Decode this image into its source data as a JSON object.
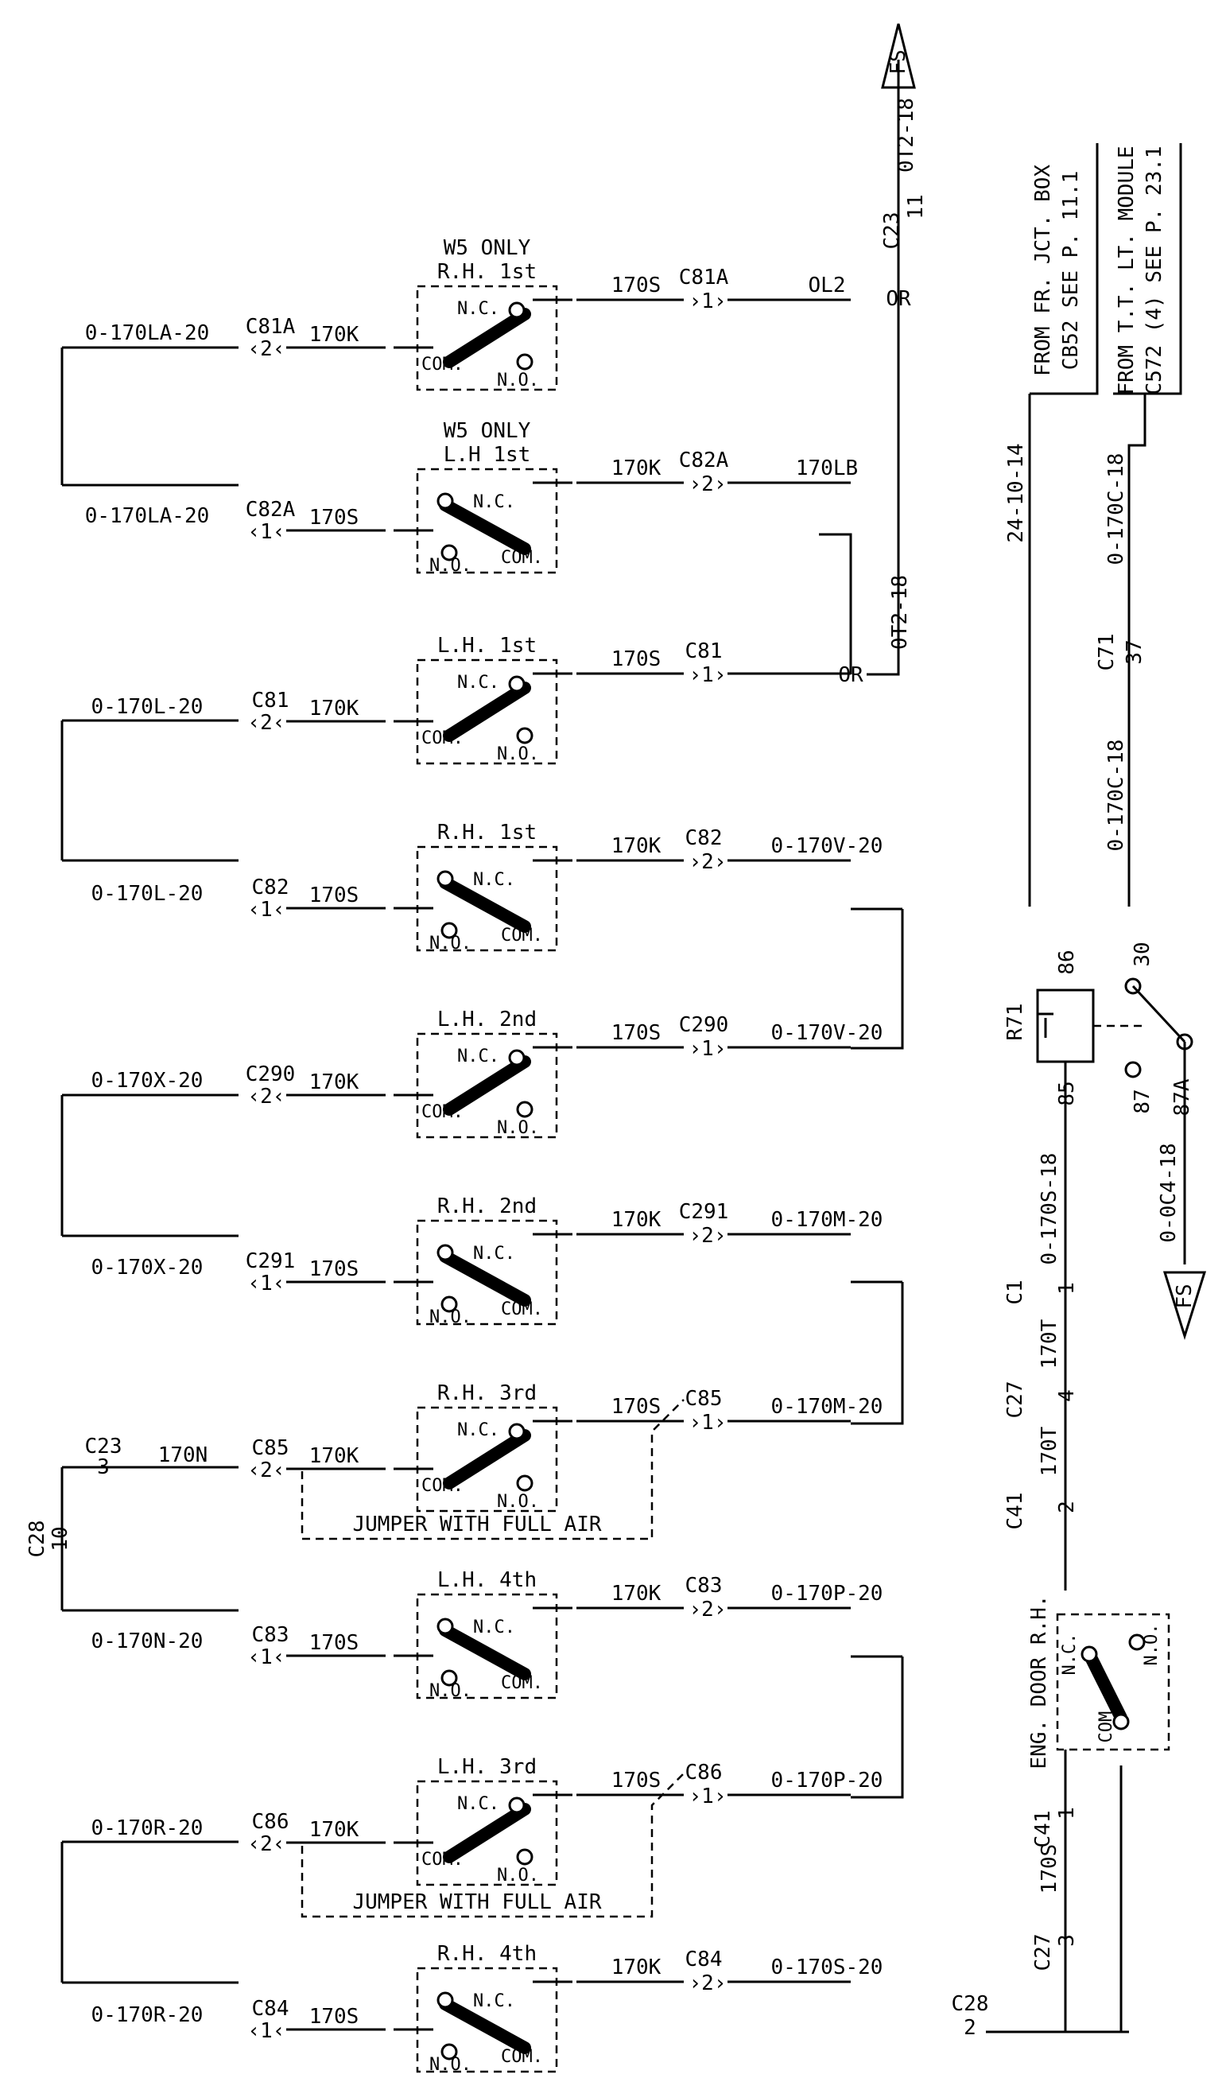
{
  "switches": [
    {
      "title": "R.H. 1st",
      "note": "W5  ONLY",
      "normal": "closed",
      "left": [
        {
          "wire": "0-170LA-20",
          "conn": "C81A",
          "pin": "2",
          "sig": "170K"
        }
      ],
      "right": {
        "sig": "170S",
        "conn": "C81A",
        "pin": "1",
        "wire": "OL2"
      }
    },
    {
      "title": "L.H  1st",
      "note": "W5  ONLY",
      "normal": "open",
      "left": [
        {
          "wire": "0-170LA-20",
          "conn": "C82A",
          "pin": "1",
          "sig": "170S"
        }
      ],
      "right": {
        "sig": "170K",
        "conn": "C82A",
        "pin": "2",
        "wire": "170LB"
      }
    },
    {
      "title": "L.H. 1st",
      "normal": "closed",
      "left": [
        {
          "wire": "0-170L-20",
          "conn": "C81",
          "pin": "2",
          "sig": "170K"
        }
      ],
      "right": {
        "sig": "170S",
        "conn": "C81",
        "pin": "1",
        "wire": ""
      }
    },
    {
      "title": "R.H. 1st",
      "normal": "open",
      "left": [
        {
          "wire": "0-170L-20",
          "conn": "C82",
          "pin": "1",
          "sig": "170S"
        }
      ],
      "right": {
        "sig": "170K",
        "conn": "C82",
        "pin": "2",
        "wire": "0-170V-20"
      }
    },
    {
      "title": "L.H. 2nd",
      "normal": "closed",
      "left": [
        {
          "wire": "0-170X-20",
          "conn": "C290",
          "pin": "2",
          "sig": "170K"
        }
      ],
      "right": {
        "sig": "170S",
        "conn": "C290",
        "pin": "1",
        "wire": "0-170V-20"
      }
    },
    {
      "title": "R.H. 2nd",
      "normal": "open",
      "left": [
        {
          "wire": "0-170X-20",
          "conn": "C291",
          "pin": "1",
          "sig": "170S"
        }
      ],
      "right": {
        "sig": "170K",
        "conn": "C291",
        "pin": "2",
        "wire": "0-170M-20"
      }
    },
    {
      "title": "R.H. 3rd",
      "normal": "closed",
      "left": [
        {
          "wire": "170N",
          "conn": "C85",
          "pin": "2",
          "sig": "170K"
        }
      ],
      "right": {
        "sig": "170S",
        "conn": "C85",
        "pin": "1",
        "wire": "0-170M-20"
      }
    },
    {
      "title": "L.H. 4th",
      "normal": "open",
      "left": [
        {
          "wire": "0-170N-20",
          "conn": "C83",
          "pin": "1",
          "sig": "170S"
        }
      ],
      "right": {
        "sig": "170K",
        "conn": "C83",
        "pin": "2",
        "wire": "0-170P-20"
      }
    },
    {
      "title": "L.H. 3rd",
      "normal": "closed",
      "left": [
        {
          "wire": "0-170R-20",
          "conn": "C86",
          "pin": "2",
          "sig": "170K"
        }
      ],
      "right": {
        "sig": "170S",
        "conn": "C86",
        "pin": "1",
        "wire": "0-170P-20"
      }
    },
    {
      "title": "R.H. 4th",
      "normal": "open",
      "left": [
        {
          "wire": "0-170R-20",
          "conn": "C84",
          "pin": "1",
          "sig": "170S"
        }
      ],
      "right": {
        "sig": "170K",
        "conn": "C84",
        "pin": "2",
        "wire": "0-170S-20"
      }
    }
  ],
  "labels": {
    "nc": "N.C.",
    "no": "N.O.",
    "com": "COM.",
    "or": "OR",
    "fs": "FS",
    "jumper": "JUMPER  WITH  FULL  AIR",
    "c23": "C23",
    "c23_pin_top": "11",
    "c23_pin": "3",
    "ot2_18": "0T2-18",
    "c28": "C28",
    "c28_pin_left": "10",
    "c28_pin_right": "2",
    "wire_170n": "170N",
    "relay": "R71",
    "relay_86": "86",
    "relay_85": "85",
    "relay_30": "30",
    "relay_87": "87",
    "relay_87a": "87A",
    "from_fr_1": "FROM  FR. JCT. BOX",
    "from_fr_2": "CB52  SEE  P. 11.1",
    "from_tt_1": "FROM  T.T. LT. MODULE",
    "from_tt_2": "C572  (4) SEE  P. 23.1",
    "w_24_10_14": "24-10-14",
    "w_0_170c_18": "0-170C-18",
    "c71": "C71",
    "c71_pin": "37",
    "w_0_170s_18": "0-170S-18",
    "w_0_0c4_18": "0-0C4-18",
    "c1": "C1",
    "c1_pin": "1",
    "w_170t": "170T",
    "c27": "C27",
    "c27_pin": "4",
    "c41": "C41",
    "c41_pin": "2",
    "eng_door": "ENG. DOOR R.H.",
    "c41_pin_b": "1",
    "c27_pin_b": "3",
    "w_170s": "170S",
    "c28_b": "C28"
  }
}
